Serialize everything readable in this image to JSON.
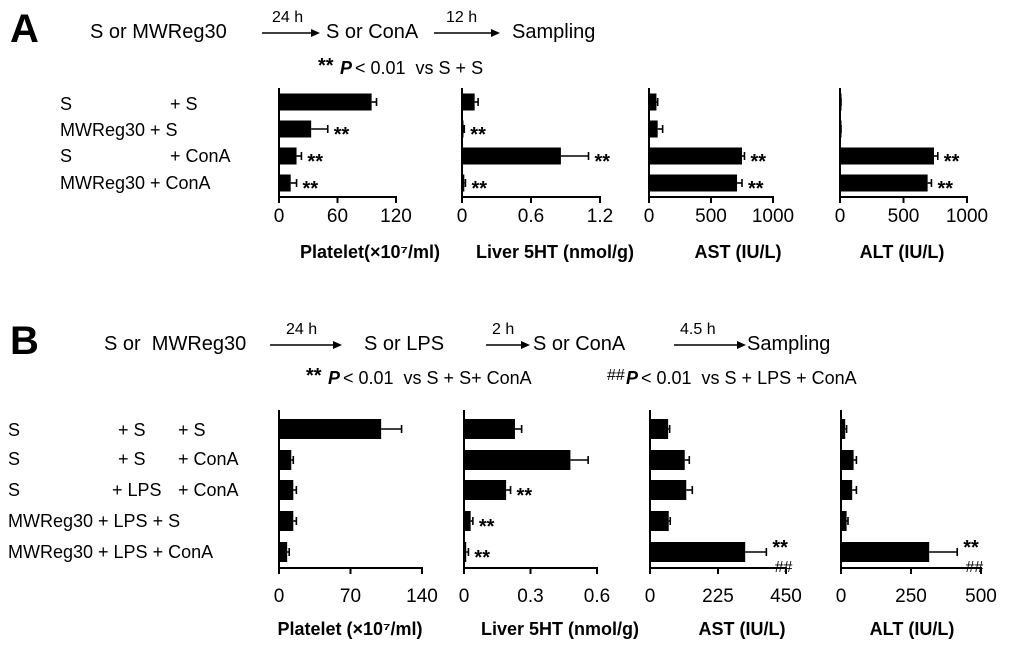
{
  "panels": [
    {
      "letter": "A",
      "flow": {
        "steps": [
          "S or MWReg30",
          "S or ConA",
          "Sampling"
        ],
        "arrows": [
          "24 h",
          "12 h"
        ]
      },
      "stats": [
        {
          "symbol": "**",
          "p": "P",
          "text": "< 0.01  vs S + S"
        }
      ],
      "groups": [
        [
          "S",
          "+ S"
        ],
        [
          "MWReg30 + S"
        ],
        [
          "S",
          "+ ConA"
        ],
        [
          "MWReg30 + ConA"
        ]
      ]
    },
    {
      "letter": "B",
      "flow": {
        "steps": [
          "S or  MWReg30",
          "S or LPS",
          "S or ConA",
          "Sampling"
        ],
        "arrows": [
          "24 h",
          "2 h",
          "4.5 h"
        ]
      },
      "stats": [
        {
          "symbol": "**",
          "p": "P",
          "text": "< 0.01  vs S + S+ ConA"
        },
        {
          "symbol": "##",
          "p": "P",
          "text": "< 0.01  vs S + LPS + ConA"
        }
      ],
      "groups": [
        [
          "S",
          "+ S",
          "+ S"
        ],
        [
          "S",
          "+ S",
          "+ ConA"
        ],
        [
          "S",
          "+ LPS",
          "+ ConA"
        ],
        [
          "MWReg30 + LPS + S"
        ],
        [
          "MWReg30 + LPS + ConA"
        ]
      ]
    }
  ],
  "chart_data": [
    {
      "type": "bar",
      "orientation": "horizontal",
      "panel": "A",
      "xlabel": "Platelet(×10⁷/ml)",
      "xlim": [
        0,
        120
      ],
      "ticks": [
        "0",
        "60",
        "120"
      ],
      "values": [
        95,
        33,
        18,
        12
      ],
      "errors": [
        5,
        17,
        5,
        6
      ],
      "annotations": [
        "",
        "**",
        "**",
        "**"
      ]
    },
    {
      "type": "bar",
      "orientation": "horizontal",
      "panel": "A",
      "xlabel": "Liver 5HT (nmol/g)",
      "xlim": [
        0,
        1.2
      ],
      "ticks": [
        "0",
        "0.6",
        "1.2"
      ],
      "values": [
        0.11,
        0.01,
        0.86,
        0.02
      ],
      "errors": [
        0.03,
        0.01,
        0.24,
        0.01
      ],
      "annotations": [
        "",
        "**",
        "**",
        "**"
      ]
    },
    {
      "type": "bar",
      "orientation": "horizontal",
      "panel": "A",
      "xlabel": "AST (IU/L)",
      "xlim": [
        0,
        1000
      ],
      "ticks": [
        "0",
        "500",
        "1000"
      ],
      "values": [
        60,
        70,
        750,
        710
      ],
      "errors": [
        10,
        40,
        20,
        40
      ],
      "annotations": [
        "",
        "",
        "**",
        "**"
      ]
    },
    {
      "type": "bar",
      "orientation": "horizontal",
      "panel": "A",
      "xlabel": "ALT (IU/L)",
      "xlim": [
        0,
        1000
      ],
      "ticks": [
        "0",
        "500",
        "1000"
      ],
      "values": [
        5,
        5,
        740,
        690
      ],
      "errors": [
        3,
        3,
        30,
        30
      ],
      "annotations": [
        "",
        "",
        "**",
        "**"
      ]
    },
    {
      "type": "bar",
      "orientation": "horizontal",
      "panel": "B",
      "xlabel": "Platelet (×10⁷/ml)",
      "xlim": [
        0,
        140
      ],
      "ticks": [
        "0",
        "70",
        "140"
      ],
      "values": [
        100,
        12,
        14,
        14,
        8
      ],
      "errors": [
        20,
        2,
        3,
        3,
        2
      ],
      "annotations": [
        "",
        "",
        "",
        "",
        ""
      ]
    },
    {
      "type": "bar",
      "orientation": "horizontal",
      "panel": "B",
      "xlabel": "Liver 5HT (nmol/g)",
      "xlim": [
        0,
        0.6
      ],
      "ticks": [
        "0",
        "0.3",
        "0.6"
      ],
      "values": [
        0.23,
        0.48,
        0.19,
        0.03,
        0.01
      ],
      "errors": [
        0.03,
        0.08,
        0.02,
        0.01,
        0.01
      ],
      "annotations": [
        "",
        "",
        "**",
        "**",
        "**"
      ]
    },
    {
      "type": "bar",
      "orientation": "horizontal",
      "panel": "B",
      "xlabel": "AST (IU/L)",
      "xlim": [
        0,
        450
      ],
      "ticks": [
        "0",
        "225",
        "450"
      ],
      "values": [
        60,
        115,
        120,
        62,
        315
      ],
      "errors": [
        5,
        15,
        20,
        5,
        70
      ],
      "annotations": [
        "",
        "",
        "",
        "",
        "**"
      ],
      "annotations2": [
        "",
        "",
        "",
        "",
        "##"
      ]
    },
    {
      "type": "bar",
      "orientation": "horizontal",
      "panel": "B",
      "xlabel": "ALT (IU/L)",
      "xlim": [
        0,
        500
      ],
      "ticks": [
        "0",
        "250",
        "500"
      ],
      "values": [
        15,
        45,
        40,
        20,
        315
      ],
      "errors": [
        5,
        10,
        15,
        5,
        100
      ],
      "annotations": [
        "",
        "",
        "",
        "",
        "**"
      ],
      "annotations2": [
        "",
        "",
        "",
        "",
        "##"
      ]
    }
  ]
}
